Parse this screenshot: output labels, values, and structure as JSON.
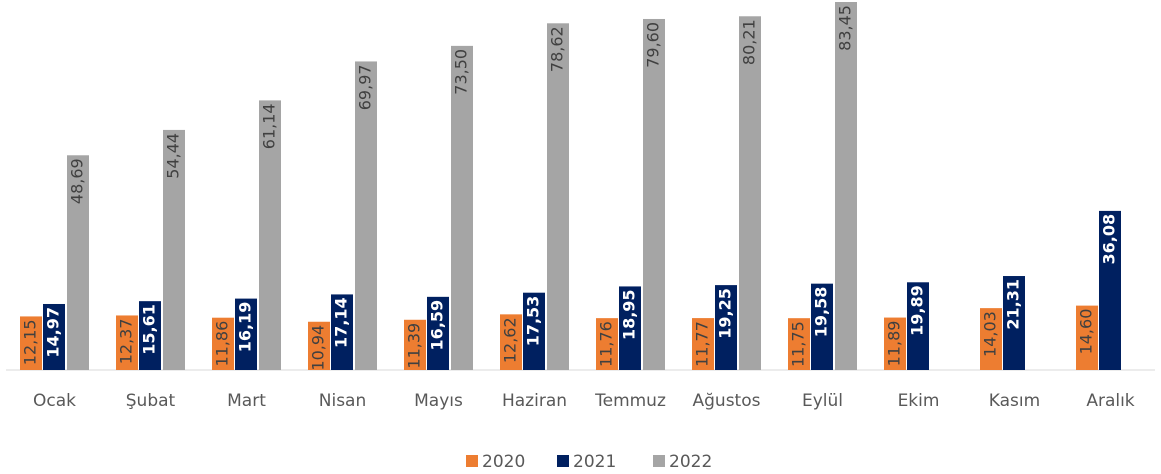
{
  "chart_data": {
    "type": "bar",
    "categories": [
      "Ocak",
      "Şubat",
      "Mart",
      "Nisan",
      "Mayıs",
      "Haziran",
      "Temmuz",
      "Ağustos",
      "Eylül",
      "Ekim",
      "Kasım",
      "Aralık"
    ],
    "series": [
      {
        "name": "2020",
        "color": "#ed7d31",
        "values": [
          12.15,
          12.37,
          11.86,
          10.94,
          11.39,
          12.62,
          11.76,
          11.77,
          11.75,
          11.89,
          14.03,
          14.6
        ],
        "value_labels": [
          "12,15",
          "12,37",
          "11,86",
          "10,94",
          "11,39",
          "12,62",
          "11,76",
          "11,77",
          "11,75",
          "11,89",
          "14,03",
          "14,60"
        ]
      },
      {
        "name": "2021",
        "color": "#002060",
        "values": [
          14.97,
          15.61,
          16.19,
          17.14,
          16.59,
          17.53,
          18.95,
          19.25,
          19.58,
          19.89,
          21.31,
          36.08
        ],
        "value_labels": [
          "14,97",
          "15,61",
          "16,19",
          "17,14",
          "16,59",
          "17,53",
          "18,95",
          "19,25",
          "19,58",
          "19,89",
          "21,31",
          "36,08"
        ]
      },
      {
        "name": "2022",
        "color": "#a5a5a5",
        "values": [
          48.69,
          54.44,
          61.14,
          69.97,
          73.5,
          78.62,
          79.6,
          80.21,
          83.45,
          null,
          null,
          null
        ],
        "value_labels": [
          "48,69",
          "54,44",
          "61,14",
          "69,97",
          "73,50",
          "78,62",
          "79,60",
          "80,21",
          "83,45",
          null,
          null,
          null
        ]
      }
    ]
  }
}
